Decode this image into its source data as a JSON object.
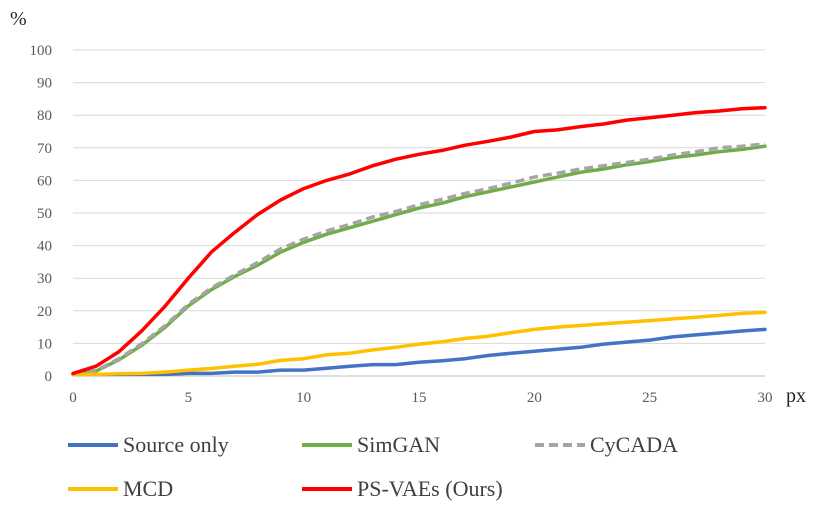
{
  "chart_data": {
    "type": "line",
    "title": "",
    "ylabel": "%",
    "xlabel": "px",
    "xlim": [
      0,
      30
    ],
    "ylim": [
      0,
      100
    ],
    "y_ticks": [
      0,
      10,
      20,
      30,
      40,
      50,
      60,
      70,
      80,
      90,
      100
    ],
    "x_ticks": [
      0,
      5,
      10,
      15,
      20,
      25,
      30
    ],
    "grid": "horizontal",
    "legend_position": "bottom",
    "x": [
      0,
      1,
      2,
      3,
      4,
      5,
      6,
      7,
      8,
      9,
      10,
      11,
      12,
      13,
      14,
      15,
      16,
      17,
      18,
      19,
      20,
      21,
      22,
      23,
      24,
      25,
      26,
      27,
      28,
      29,
      30
    ],
    "series": [
      {
        "name": "Source only",
        "color": "#4472c4",
        "dash": "solid",
        "values": [
          0.5,
          0.5,
          0.5,
          0.5,
          0.5,
          0.8,
          0.8,
          1.2,
          1.2,
          1.8,
          1.8,
          2.4,
          3.0,
          3.5,
          3.5,
          4.2,
          4.7,
          5.3,
          6.3,
          7.0,
          7.6,
          8.2,
          8.8,
          9.8,
          10.4,
          11.0,
          12.0,
          12.6,
          13.2,
          13.8,
          14.3
        ]
      },
      {
        "name": "SimGAN",
        "color": "#70ad47",
        "dash": "solid",
        "values": [
          0.5,
          1.5,
          5.0,
          9.5,
          15.0,
          21.5,
          26.5,
          30.5,
          34.0,
          38.0,
          41.0,
          43.5,
          45.5,
          47.5,
          49.5,
          51.5,
          53.0,
          55.0,
          56.5,
          58.0,
          59.5,
          61.0,
          62.5,
          63.5,
          64.8,
          65.8,
          67.0,
          67.8,
          68.8,
          69.5,
          70.5
        ]
      },
      {
        "name": "CyCADA",
        "color": "#a5a5a5",
        "dash": "dashed",
        "values": [
          0.5,
          1.7,
          5.3,
          10.0,
          15.5,
          22.0,
          27.0,
          31.0,
          34.8,
          39.0,
          42.0,
          44.5,
          46.5,
          48.8,
          50.5,
          52.5,
          54.2,
          56.0,
          57.5,
          59.2,
          61.0,
          62.2,
          63.5,
          64.5,
          65.5,
          66.5,
          67.8,
          68.8,
          70.0,
          70.5,
          71.2
        ]
      },
      {
        "name": "MCD",
        "color": "#ffc000",
        "dash": "solid",
        "values": [
          0.5,
          0.5,
          0.7,
          0.8,
          1.2,
          1.8,
          2.3,
          3.0,
          3.6,
          4.8,
          5.3,
          6.5,
          7.0,
          8.0,
          8.8,
          9.8,
          10.5,
          11.5,
          12.2,
          13.3,
          14.3,
          15.0,
          15.5,
          16.0,
          16.5,
          17.0,
          17.5,
          18.0,
          18.6,
          19.2,
          19.5
        ]
      },
      {
        "name": "PS-VAEs (Ours)",
        "color": "#ff0000",
        "dash": "solid",
        "values": [
          0.8,
          3.0,
          7.5,
          14.0,
          21.5,
          30.0,
          38.0,
          44.0,
          49.5,
          54.0,
          57.5,
          60.0,
          62.0,
          64.5,
          66.5,
          68.0,
          69.2,
          70.8,
          72.0,
          73.3,
          75.0,
          75.5,
          76.5,
          77.3,
          78.5,
          79.2,
          80.0,
          80.8,
          81.3,
          82.0,
          82.3
        ]
      }
    ]
  }
}
